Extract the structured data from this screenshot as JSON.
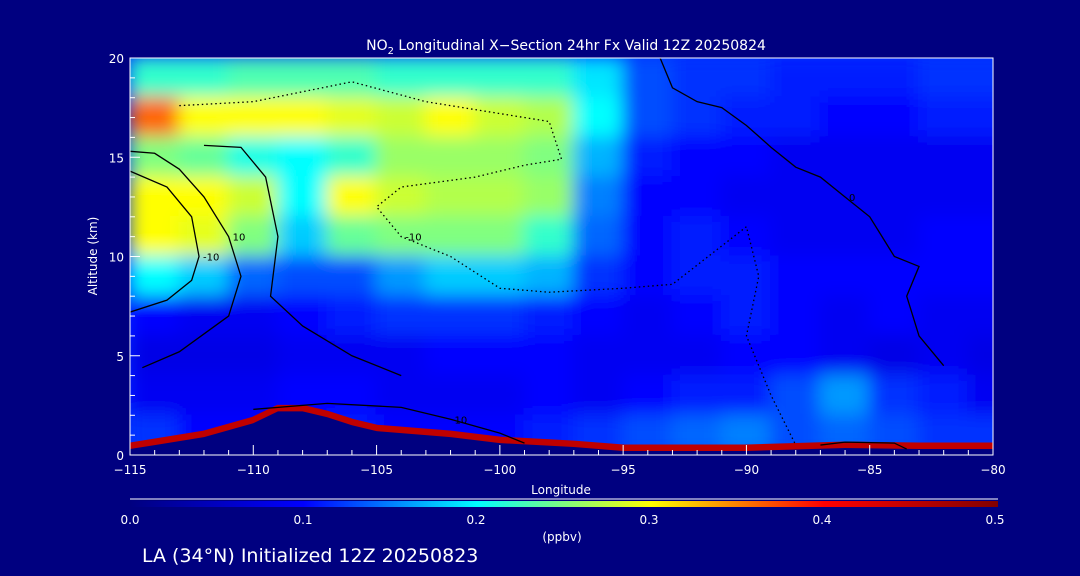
{
  "chart_data": {
    "type": "heatmap",
    "title_prefix": "NO",
    "title_sub": "2",
    "title_rest": " Longitudinal X−Section 24hr  Fx Valid 12Z 20250824",
    "xlabel": "Longitude",
    "ylabel": "Altitude (km)",
    "xlim": [
      -115,
      -80
    ],
    "ylim": [
      0,
      20
    ],
    "xticks": [
      -115,
      -110,
      -105,
      -100,
      -95,
      -90,
      -85,
      -80
    ],
    "xtick_labels": [
      "−115",
      "−110",
      "−105",
      "−100",
      "−95",
      "−90",
      "−85",
      "−80"
    ],
    "yticks": [
      0,
      5,
      10,
      15,
      20
    ],
    "ytick_labels": [
      "0",
      "5",
      "10",
      "15",
      "20"
    ],
    "grid_lon": [
      -114,
      -112,
      -110,
      -108,
      -106,
      -104,
      -102,
      -100,
      -98,
      -96,
      -94,
      -92,
      -90,
      -88,
      -86,
      -84,
      -82,
      -80
    ],
    "grid_alt": [
      19,
      17,
      15,
      13,
      11,
      9,
      7,
      5,
      3,
      1
    ],
    "values": [
      [
        0.22,
        0.22,
        0.23,
        0.23,
        0.23,
        0.22,
        0.22,
        0.22,
        0.22,
        0.19,
        0.13,
        0.12,
        0.12,
        0.11,
        0.11,
        0.11,
        0.12,
        0.12
      ],
      [
        0.36,
        0.3,
        0.3,
        0.3,
        0.29,
        0.28,
        0.3,
        0.28,
        0.27,
        0.2,
        0.13,
        0.12,
        0.11,
        0.11,
        0.1,
        0.1,
        0.11,
        0.11
      ],
      [
        0.25,
        0.24,
        0.21,
        0.2,
        0.22,
        0.26,
        0.26,
        0.26,
        0.25,
        0.17,
        0.11,
        0.1,
        0.1,
        0.09,
        0.09,
        0.09,
        0.09,
        0.09
      ],
      [
        0.3,
        0.3,
        0.28,
        0.2,
        0.3,
        0.28,
        0.27,
        0.27,
        0.26,
        0.15,
        0.1,
        0.1,
        0.09,
        0.09,
        0.09,
        0.09,
        0.09,
        0.09
      ],
      [
        0.3,
        0.29,
        0.25,
        0.18,
        0.24,
        0.25,
        0.25,
        0.25,
        0.22,
        0.14,
        0.1,
        0.11,
        0.1,
        0.09,
        0.09,
        0.09,
        0.1,
        0.1
      ],
      [
        0.2,
        0.18,
        0.14,
        0.13,
        0.13,
        0.16,
        0.18,
        0.18,
        0.17,
        0.12,
        0.1,
        0.11,
        0.11,
        0.1,
        0.1,
        0.1,
        0.1,
        0.1
      ],
      [
        0.1,
        0.09,
        0.09,
        0.1,
        0.11,
        0.12,
        0.12,
        0.12,
        0.11,
        0.1,
        0.09,
        0.1,
        0.11,
        0.1,
        0.09,
        0.1,
        0.09,
        0.09
      ],
      [
        0.08,
        0.08,
        0.08,
        0.09,
        0.09,
        0.09,
        0.1,
        0.1,
        0.1,
        0.09,
        0.09,
        0.09,
        0.1,
        0.1,
        0.09,
        0.08,
        0.09,
        0.08
      ],
      [
        0.09,
        0.09,
        0.09,
        0.1,
        0.1,
        0.09,
        0.09,
        0.09,
        0.1,
        0.09,
        0.1,
        0.11,
        0.11,
        0.13,
        0.16,
        0.12,
        0.11,
        0.09
      ],
      [
        0.12,
        0.1,
        0.1,
        0.1,
        0.11,
        0.1,
        0.1,
        0.1,
        0.11,
        0.12,
        0.13,
        0.14,
        0.15,
        0.13,
        0.14,
        0.13,
        0.12,
        0.12
      ]
    ],
    "terrain": {
      "lon": [
        -115,
        -114,
        -112,
        -110,
        -109,
        -108,
        -107,
        -106,
        -105,
        -102,
        -100,
        -97,
        -95,
        -90,
        -86,
        -83,
        -80
      ],
      "alt": [
        0.3,
        0.5,
        0.9,
        1.6,
        2.2,
        2.2,
        1.9,
        1.5,
        1.2,
        0.9,
        0.6,
        0.4,
        0.2,
        0.2,
        0.35,
        0.3,
        0.3
      ]
    },
    "contours": [
      {
        "label": "0",
        "style": "solid",
        "lon": [
          -93.5,
          -93,
          -92,
          -91,
          -90,
          -89,
          -88,
          -87,
          -86,
          -85,
          -84.5,
          -84,
          -83,
          -83.5,
          -83,
          -82
        ],
        "alt": [
          20,
          18.5,
          17.8,
          17.5,
          16.6,
          15.5,
          14.5,
          14,
          13,
          12,
          11,
          10,
          9.5,
          8,
          6,
          4.5
        ]
      },
      {
        "label": "-10",
        "style": "dotted",
        "lon": [
          -113,
          -110,
          -106,
          -103,
          -100,
          -98,
          -97.5,
          -99,
          -101,
          -104,
          -105,
          -104,
          -102,
          -100,
          -98,
          -95,
          -93,
          -90,
          -89.5,
          -90,
          -89,
          -88
        ],
        "alt": [
          17.6,
          17.8,
          18.8,
          17.8,
          17.2,
          16.8,
          14.9,
          14.6,
          14.0,
          13.5,
          12.5,
          11,
          10,
          8.4,
          8.2,
          8.4,
          8.6,
          11.5,
          9,
          6,
          3,
          0.5
        ]
      },
      {
        "label": "10",
        "style": "solid",
        "lon": [
          -115,
          -114,
          -113,
          -112,
          -111,
          -110.5,
          -111,
          -113,
          -114.5
        ],
        "alt": [
          15.3,
          15.2,
          14.4,
          13,
          11,
          9,
          7,
          5.2,
          4.4
        ]
      },
      {
        "label": "-10",
        "style": "solid",
        "lon": [
          -115,
          -113.5,
          -112.5,
          -112.2,
          -112.5,
          -113.5,
          -115
        ],
        "alt": [
          14.3,
          13.5,
          12,
          10,
          8.8,
          7.8,
          7.2
        ]
      },
      {
        "label": "",
        "style": "solid",
        "lon": [
          -112,
          -110.5,
          -109.5,
          -109,
          -109.3,
          -108,
          -106,
          -104
        ],
        "alt": [
          15.6,
          15.5,
          14,
          11,
          8,
          6.5,
          5.0,
          4.0
        ]
      },
      {
        "label": "10",
        "style": "solid",
        "lon": [
          -110,
          -107,
          -104,
          -102,
          -100,
          -99
        ],
        "alt": [
          2.3,
          2.6,
          2.4,
          1.8,
          1.1,
          0.6
        ]
      },
      {
        "label": "",
        "style": "solid",
        "lon": [
          -87,
          -86,
          -84,
          -83.5
        ],
        "alt": [
          0.5,
          0.65,
          0.6,
          0.3
        ]
      }
    ],
    "colorbar": {
      "min": 0.0,
      "max": 0.5,
      "tick_labels": [
        "0.0",
        "0.1",
        "0.2",
        "0.3",
        "0.4",
        "0.5"
      ],
      "units": "(ppbv)",
      "colors": [
        "#000080",
        "#0000ff",
        "#00ffff",
        "#ffff00",
        "#ff0000",
        "#800000"
      ]
    }
  },
  "footer": "LA (34°N) Initialized 12Z 20250823"
}
